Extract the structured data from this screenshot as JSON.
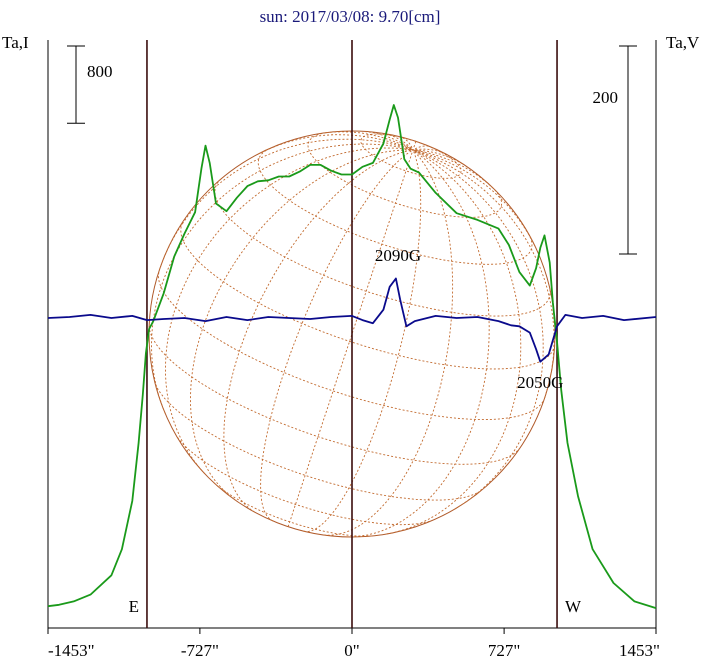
{
  "chart_data": {
    "type": "line",
    "title": "sun: 2017/03/08: 9.70[cm]",
    "left_axis_label": "Ta,I",
    "right_axis_label": "Ta,V",
    "xlim": [
      -1453,
      1453
    ],
    "x_ticks": [
      {
        "value": -1453,
        "label": "-1453\""
      },
      {
        "value": -727,
        "label": "-727\""
      },
      {
        "value": 0,
        "label": "0\""
      },
      {
        "value": 727,
        "label": "727\""
      },
      {
        "value": 1453,
        "label": "1453\""
      }
    ],
    "limb_markers": [
      {
        "value": -980,
        "label": "E"
      },
      {
        "value": 980,
        "label": "W"
      }
    ],
    "scale_bars": [
      {
        "axis": "left",
        "value": 800,
        "label": "800"
      },
      {
        "axis": "right",
        "value": 200,
        "label": "200"
      }
    ],
    "annotations": [
      {
        "label": "2090G",
        "x": 220
      },
      {
        "label": "2050G",
        "x": 900
      }
    ],
    "series": [
      {
        "axis": "left",
        "color": "#1a9a1a",
        "x": [
          -1453,
          -1400,
          -1330,
          -1250,
          -1150,
          -1100,
          -1050,
          -1020,
          -1000,
          -985,
          -970,
          -950,
          -900,
          -850,
          -800,
          -750,
          -720,
          -700,
          -680,
          -650,
          -600,
          -550,
          -500,
          -450,
          -400,
          -350,
          -300,
          -250,
          -200,
          -150,
          -100,
          -50,
          0,
          50,
          100,
          150,
          180,
          200,
          220,
          250,
          280,
          320,
          400,
          500,
          600,
          700,
          750,
          800,
          850,
          880,
          900,
          920,
          945,
          960,
          980,
          1000,
          1030,
          1080,
          1150,
          1250,
          1350,
          1453
        ],
        "y": [
          60,
          75,
          110,
          180,
          380,
          650,
          1150,
          1750,
          2250,
          2680,
          2930,
          3010,
          3300,
          3680,
          3920,
          4140,
          4590,
          4830,
          4650,
          4230,
          4150,
          4290,
          4410,
          4460,
          4470,
          4510,
          4510,
          4560,
          4630,
          4630,
          4570,
          4530,
          4530,
          4610,
          4650,
          4850,
          5100,
          5250,
          5120,
          4690,
          4590,
          4550,
          4340,
          4130,
          4060,
          3970,
          3800,
          3520,
          3380,
          3560,
          3770,
          3900,
          3620,
          3200,
          2800,
          2300,
          1750,
          1200,
          650,
          300,
          110,
          40
        ]
      },
      {
        "axis": "right",
        "color": "#0a0a8c",
        "x": [
          -1453,
          -1350,
          -1250,
          -1150,
          -1050,
          -980,
          -900,
          -800,
          -700,
          -600,
          -500,
          -400,
          -300,
          -200,
          -100,
          0,
          50,
          100,
          150,
          180,
          210,
          230,
          260,
          300,
          400,
          500,
          600,
          700,
          760,
          800,
          850,
          880,
          900,
          940,
          980,
          1020,
          1100,
          1200,
          1300,
          1453
        ],
        "y": [
          0,
          1,
          3,
          0,
          2,
          -2,
          -1,
          0,
          -3,
          1,
          -2,
          1,
          0,
          -1,
          1,
          2,
          -2,
          -5,
          8,
          30,
          38,
          18,
          -8,
          -3,
          2,
          0,
          1,
          -3,
          -7,
          -8,
          -14,
          -30,
          -42,
          -35,
          -8,
          3,
          0,
          2,
          -2,
          1
        ]
      }
    ]
  }
}
